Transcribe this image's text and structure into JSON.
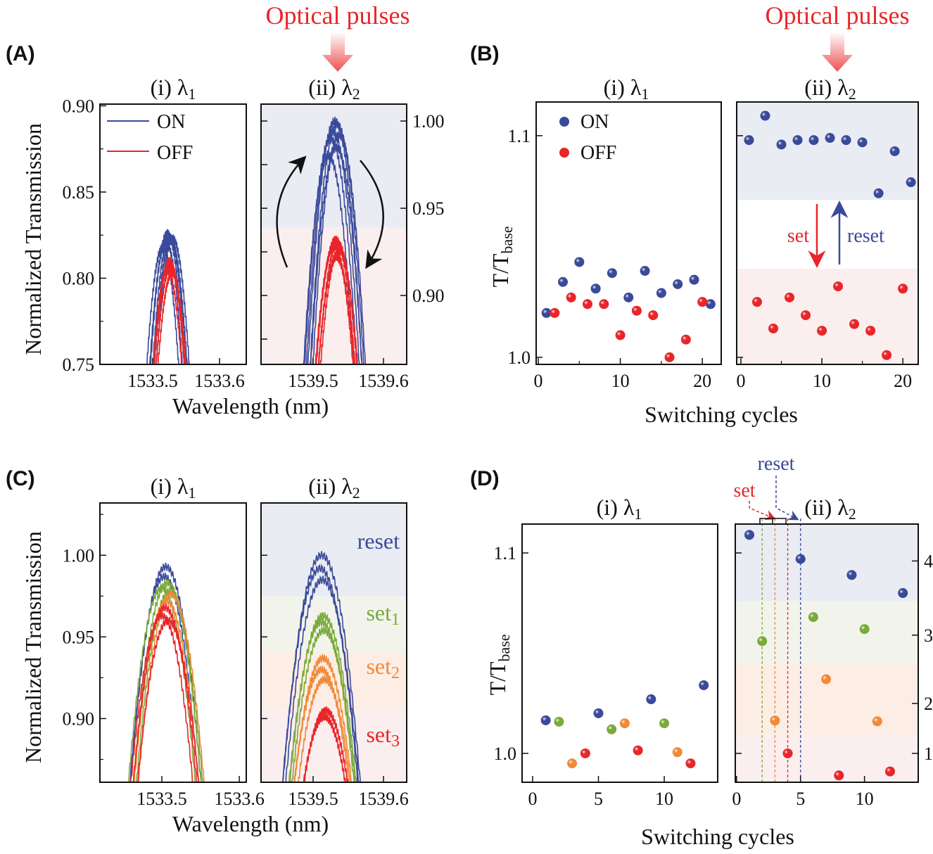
{
  "panel_labels": [
    "(A)",
    "(B)",
    "(C)",
    "(D)"
  ],
  "optical_pulses_label": "Optical pulses",
  "subtitles": {
    "i": {
      "text": "(i) λ",
      "sub": "1"
    },
    "ii": {
      "text": "(ii) λ",
      "sub": "2"
    }
  },
  "ylabel_transmission": "Normalized  Transmission",
  "ylabel_ratio": {
    "text": "T/T",
    "sub": "base"
  },
  "xlabel_wavelength": "Wavelength (nm)",
  "xlabel_cycles": "Switching cycles",
  "legend": {
    "on": "ON",
    "off": "OFF"
  },
  "annotations": {
    "set": "set",
    "reset": "reset",
    "levels": [
      {
        "text": "reset",
        "sub": ""
      },
      {
        "text": "set",
        "sub": "1"
      },
      {
        "text": "set",
        "sub": "2"
      },
      {
        "text": "set",
        "sub": "3"
      }
    ]
  },
  "colors": {
    "on": "#3a4a9a",
    "off": "#e8262a",
    "set1": "#7aaa3a",
    "set2": "#f08a3a",
    "set3": "#e8262a",
    "reset": "#3a4a9a",
    "band_on": "#e9ecf3",
    "band_off": "#fbeeee",
    "band_set1": "#f2f4ec",
    "band_set2": "#fdeee5",
    "band_set3": "#fbeeee",
    "pulse": "#e8262a"
  },
  "chart_data": [
    {
      "id": "A-i",
      "type": "line",
      "xlim": [
        1533.421,
        1533.64
      ],
      "ylim": [
        0.75,
        0.901
      ],
      "xticks": [
        "1533.5",
        "1533.6"
      ],
      "yticks": [
        "0.75",
        "0.80",
        "0.85",
        "0.90"
      ],
      "series": [
        {
          "name": "ON",
          "color": "on",
          "curves": [
            {
              "center": 1533.522,
              "peak": 0.826
            },
            {
              "center": 1533.525,
              "peak": 0.824
            },
            {
              "center": 1533.527,
              "peak": 0.822
            },
            {
              "center": 1533.52,
              "peak": 0.821
            },
            {
              "center": 1533.53,
              "peak": 0.823
            },
            {
              "center": 1533.515,
              "peak": 0.818
            }
          ]
        },
        {
          "name": "OFF",
          "color": "off",
          "curves": [
            {
              "center": 1533.525,
              "peak": 0.81
            },
            {
              "center": 1533.527,
              "peak": 0.807
            },
            {
              "center": 1533.522,
              "peak": 0.805
            },
            {
              "center": 1533.529,
              "peak": 0.803
            }
          ]
        }
      ]
    },
    {
      "id": "A-ii",
      "type": "line",
      "xlim": [
        1539.426,
        1539.633
      ],
      "ylim": [
        0.8605,
        1.0097
      ],
      "xticks": [
        "1539.5",
        "1539.6"
      ],
      "yticks_right": [
        "0.90",
        "0.95",
        "1.00"
      ],
      "bands": [
        {
          "color": "band_on",
          "from": 0.939,
          "to": 1.0097
        },
        {
          "color": "band_off",
          "from": 0.8605,
          "to": 0.939
        }
      ],
      "series": [
        {
          "name": "ON",
          "color": "on",
          "curves": [
            {
              "center": 1539.531,
              "peak": 1.0
            },
            {
              "center": 1539.534,
              "peak": 0.998
            },
            {
              "center": 1539.528,
              "peak": 0.994
            },
            {
              "center": 1539.537,
              "peak": 0.992
            },
            {
              "center": 1539.525,
              "peak": 0.99
            },
            {
              "center": 1539.533,
              "peak": 0.985
            },
            {
              "center": 1539.522,
              "peak": 0.98
            }
          ]
        },
        {
          "name": "OFF",
          "color": "off",
          "curves": [
            {
              "center": 1539.532,
              "peak": 0.932
            },
            {
              "center": 1539.535,
              "peak": 0.93
            },
            {
              "center": 1539.53,
              "peak": 0.928
            },
            {
              "center": 1539.537,
              "peak": 0.926
            },
            {
              "center": 1539.533,
              "peak": 0.922
            }
          ]
        }
      ]
    },
    {
      "id": "B-i",
      "type": "scatter",
      "xlim": [
        -0.26,
        22.3
      ],
      "ylim": [
        0.9968,
        1.1152
      ],
      "xticks": [
        "0",
        "10",
        "20"
      ],
      "yticks": [
        "1.0",
        "1.1"
      ],
      "series": [
        {
          "name": "ON",
          "color": "on",
          "x": [
            1,
            3,
            5,
            7,
            9,
            11,
            13,
            15,
            17,
            19,
            21
          ],
          "y": [
            1.02,
            1.034,
            1.043,
            1.031,
            1.038,
            1.027,
            1.039,
            1.029,
            1.033,
            1.035,
            1.024
          ]
        },
        {
          "name": "OFF",
          "color": "off",
          "x": [
            2,
            4,
            6,
            8,
            10,
            12,
            14,
            16,
            18,
            20
          ],
          "y": [
            1.02,
            1.027,
            1.024,
            1.024,
            1.01,
            1.021,
            1.019,
            1.0,
            1.008,
            1.025
          ]
        }
      ]
    },
    {
      "id": "B-ii",
      "type": "scatter",
      "xlim": [
        -0.52,
        21.9
      ],
      "ylim": [
        0.9968,
        1.1152
      ],
      "xticks": [
        "0",
        "10",
        "20"
      ],
      "bands": [
        {
          "color": "band_on",
          "from": 1.071,
          "to": 1.1152
        },
        {
          "color": "band_off",
          "from": 0.9968,
          "to": 1.04
        }
      ],
      "series": [
        {
          "name": "ON",
          "color": "on",
          "x": [
            1,
            3,
            5,
            7,
            9,
            11,
            13,
            15,
            17,
            19,
            21
          ],
          "y": [
            1.098,
            1.109,
            1.096,
            1.098,
            1.098,
            1.099,
            1.098,
            1.097,
            1.074,
            1.093,
            1.079
          ]
        },
        {
          "name": "OFF",
          "color": "off",
          "x": [
            2,
            4,
            6,
            8,
            10,
            12,
            14,
            16,
            18,
            20
          ],
          "y": [
            1.025,
            1.013,
            1.027,
            1.019,
            1.012,
            1.032,
            1.015,
            1.012,
            1.001,
            1.031
          ]
        }
      ]
    },
    {
      "id": "C-i",
      "type": "line",
      "xlim": [
        1533.42,
        1533.609
      ],
      "ylim": [
        0.861,
        1.032
      ],
      "xticks": [
        "1533.5",
        "1533.6"
      ],
      "yticks": [
        "0.90",
        "0.95",
        "1.00"
      ],
      "series": [
        {
          "name": "reset",
          "color": "reset",
          "curves": [
            {
              "center": 1533.505,
              "peak": 0.993
            },
            {
              "center": 1533.503,
              "peak": 0.987
            }
          ]
        },
        {
          "name": "set1",
          "color": "set1",
          "curves": [
            {
              "center": 1533.507,
              "peak": 0.983
            },
            {
              "center": 1533.5,
              "peak": 0.98
            },
            {
              "center": 1533.51,
              "peak": 0.978
            }
          ]
        },
        {
          "name": "set2",
          "color": "set2",
          "curves": [
            {
              "center": 1533.512,
              "peak": 0.976
            },
            {
              "center": 1533.506,
              "peak": 0.972
            }
          ]
        },
        {
          "name": "set3",
          "color": "set3",
          "curves": [
            {
              "center": 1533.504,
              "peak": 0.968
            },
            {
              "center": 1533.5,
              "peak": 0.963
            },
            {
              "center": 1533.508,
              "peak": 0.96
            }
          ]
        }
      ]
    },
    {
      "id": "C-ii",
      "type": "line",
      "xlim": [
        1539.426,
        1539.633
      ],
      "ylim": [
        0.861,
        1.032
      ],
      "xticks": [
        "1539.5",
        "1539.6"
      ],
      "bands": [
        {
          "color": "band_on",
          "from": 0.975,
          "to": 1.032
        },
        {
          "color": "band_set1",
          "from": 0.941,
          "to": 0.975
        },
        {
          "color": "band_set2",
          "from": 0.906,
          "to": 0.941
        },
        {
          "color": "band_set3",
          "from": 0.861,
          "to": 0.906
        }
      ],
      "series": [
        {
          "name": "reset",
          "color": "reset",
          "curves": [
            {
              "center": 1539.512,
              "peak": 1.0
            },
            {
              "center": 1539.51,
              "peak": 0.992
            },
            {
              "center": 1539.513,
              "peak": 0.985
            }
          ]
        },
        {
          "name": "set1",
          "color": "set1",
          "curves": [
            {
              "center": 1539.514,
              "peak": 0.963
            },
            {
              "center": 1539.512,
              "peak": 0.959
            },
            {
              "center": 1539.515,
              "peak": 0.954
            }
          ]
        },
        {
          "name": "set2",
          "color": "set2",
          "curves": [
            {
              "center": 1539.514,
              "peak": 0.937
            },
            {
              "center": 1539.512,
              "peak": 0.93
            },
            {
              "center": 1539.516,
              "peak": 0.924
            }
          ]
        },
        {
          "name": "set3",
          "color": "set3",
          "curves": [
            {
              "center": 1539.518,
              "peak": 0.905
            },
            {
              "center": 1539.516,
              "peak": 0.901
            }
          ]
        }
      ]
    },
    {
      "id": "D-i",
      "type": "scatter",
      "xlim": [
        -0.8,
        14.06
      ],
      "ylim": [
        0.9856,
        1.1144
      ],
      "xticks": [
        "0",
        "5",
        "10"
      ],
      "yticks": [
        "1.0",
        "1.1"
      ],
      "series": [
        {
          "name": "reset",
          "color": "reset",
          "x": [
            1,
            5,
            9,
            13
          ],
          "y": [
            1.0165,
            1.02,
            1.027,
            1.034
          ]
        },
        {
          "name": "set1",
          "color": "set1",
          "x": [
            2,
            6,
            10
          ],
          "y": [
            1.0158,
            1.012,
            1.015
          ]
        },
        {
          "name": "set2",
          "color": "set2",
          "x": [
            3,
            7,
            11
          ],
          "y": [
            0.995,
            1.015,
            1.0006
          ]
        },
        {
          "name": "set3",
          "color": "set3",
          "x": [
            4,
            8,
            12
          ],
          "y": [
            1.0,
            1.0015,
            0.995
          ]
        }
      ]
    },
    {
      "id": "D-ii",
      "type": "scatter",
      "xlim": [
        -0.1,
        14.2
      ],
      "ylim": [
        0.9856,
        1.1144
      ],
      "xticks": [
        "0",
        "5",
        "10"
      ],
      "yticks_right": [
        "1",
        "2",
        "3",
        "4"
      ],
      "bands": [
        {
          "color": "band_on",
          "from": 1.076,
          "to": 1.1144
        },
        {
          "color": "band_set1",
          "from": 1.045,
          "to": 1.076
        },
        {
          "color": "band_set2",
          "from": 1.0095,
          "to": 1.045
        },
        {
          "color": "band_set3",
          "from": 0.9856,
          "to": 1.0095
        }
      ],
      "series": [
        {
          "name": "reset",
          "color": "reset",
          "x": [
            1,
            5,
            9,
            13
          ],
          "y": [
            1.109,
            1.097,
            1.089,
            1.08
          ]
        },
        {
          "name": "set1",
          "color": "set1",
          "x": [
            2,
            6,
            10
          ],
          "y": [
            1.056,
            1.068,
            1.062
          ]
        },
        {
          "name": "set2",
          "color": "set2",
          "x": [
            3,
            7,
            11
          ],
          "y": [
            1.0164,
            1.037,
            1.016
          ]
        },
        {
          "name": "set3",
          "color": "set3",
          "x": [
            4,
            8,
            12
          ],
          "y": [
            1.0,
            0.989,
            0.991
          ]
        }
      ],
      "markers": [
        {
          "x": 2,
          "color": "set1"
        },
        {
          "x": 3,
          "color": "set2"
        },
        {
          "x": 4,
          "color": "set3"
        },
        {
          "x": 5,
          "color": "reset"
        }
      ]
    }
  ]
}
